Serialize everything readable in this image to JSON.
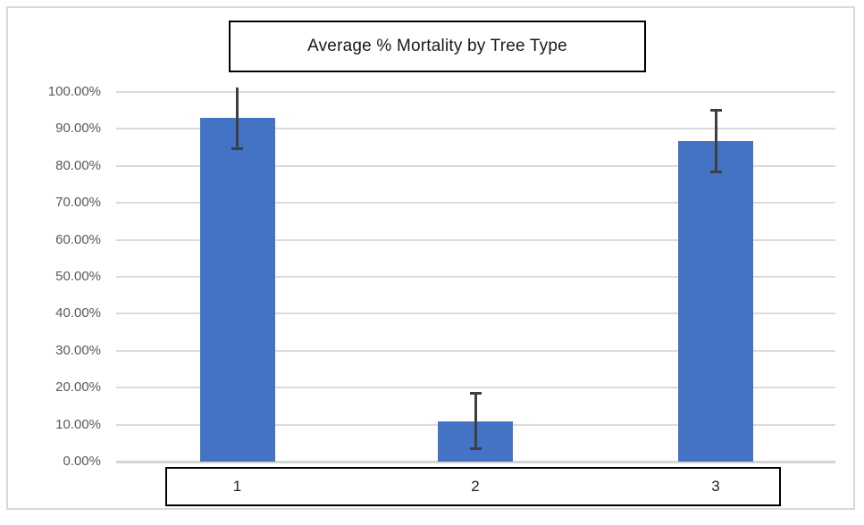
{
  "chart_data": {
    "type": "bar",
    "title": "Average % Mortality by Tree Type",
    "xlabel": "",
    "ylabel": "",
    "categories": [
      "1",
      "2",
      "3"
    ],
    "values": [
      92.9,
      10.8,
      86.7
    ],
    "error_bars": [
      {
        "low": 84.6,
        "high": 101.2,
        "cap_low": true,
        "cap_high": false
      },
      {
        "low": 3.6,
        "high": 18.5,
        "cap_low": true,
        "cap_high": true
      },
      {
        "low": 78.4,
        "high": 95.0,
        "cap_low": true,
        "cap_high": true
      }
    ],
    "ylim": [
      0,
      100
    ],
    "yticks": [
      {
        "value": 0,
        "label": "0.00%"
      },
      {
        "value": 10,
        "label": "10.00%"
      },
      {
        "value": 20,
        "label": "20.00%"
      },
      {
        "value": 30,
        "label": "30.00%"
      },
      {
        "value": 40,
        "label": "40.00%"
      },
      {
        "value": 50,
        "label": "50.00%"
      },
      {
        "value": 60,
        "label": "60.00%"
      },
      {
        "value": 70,
        "label": "70.00%"
      },
      {
        "value": 80,
        "label": "80.00%"
      },
      {
        "value": 90,
        "label": "90.00%"
      },
      {
        "value": 100,
        "label": "100.00%"
      }
    ],
    "grid": true,
    "legend": "none",
    "colors": {
      "bar": "#4472C4",
      "error_bar": "#404040",
      "gridline": "#DBDBDB",
      "axis_line": "#D4D4D4",
      "tick_label": "#595959",
      "category_label": "#222222",
      "title_text": "#1A1A1A",
      "box_border": "#000000",
      "frame_border": "#D9D9D9",
      "background": "#FFFFFF"
    }
  }
}
